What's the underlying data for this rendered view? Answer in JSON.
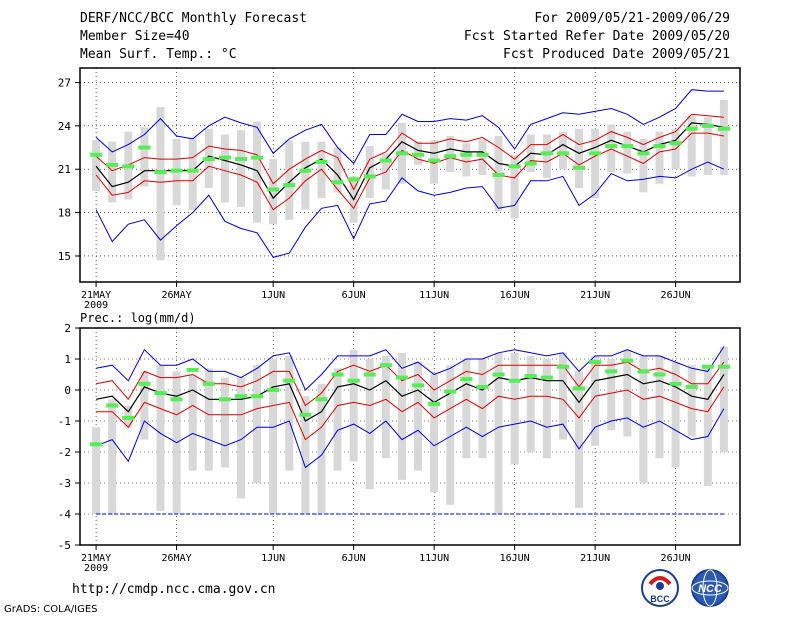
{
  "header": {
    "left_line1": "DERF/NCC/BCC Monthly Forecast",
    "left_line2": "Member Size=40",
    "left_line3": "Mean Surf. Temp.: °C",
    "right_line1": "For 2009/05/21-2009/06/29",
    "right_line2": "Fcst Started Refer Date 2009/05/20",
    "right_line3": "Fcst Produced Date 2009/05/21"
  },
  "footer": {
    "url": "http://cmdp.ncc.cma.gov.cn",
    "credit": "GrADS: COLA/IGES",
    "logo_left_text": "BCC",
    "logo_right_text": "NCC"
  },
  "colors": {
    "mean": "#000000",
    "spread_inner": "#dd0000",
    "spread_outer": "#0000dd",
    "box": "#d8d8d8",
    "observed": "#55ee55"
  },
  "chart_data": [
    {
      "type": "line",
      "title": "Mean Surf. Temp.: °C",
      "x_tick_labels": [
        "21MAY",
        "26MAY",
        "1JUN",
        "6JUN",
        "11JUN",
        "16JUN",
        "21JUN",
        "26JUN"
      ],
      "x_year_label": "2009",
      "x_tick_days": [
        1,
        6,
        12,
        17,
        22,
        27,
        32,
        37
      ],
      "xlim": [
        0,
        41
      ],
      "y_ticks": [
        15,
        18,
        21,
        24,
        27
      ],
      "ylim": [
        13.2,
        28
      ],
      "days": [
        1,
        2,
        3,
        4,
        5,
        6,
        7,
        8,
        9,
        10,
        11,
        12,
        13,
        14,
        15,
        16,
        17,
        18,
        19,
        20,
        21,
        22,
        23,
        24,
        25,
        26,
        27,
        28,
        29,
        30,
        31,
        32,
        33,
        34,
        35,
        36,
        37,
        38,
        39,
        40
      ],
      "series": [
        {
          "name": "mean",
          "values": [
            21.2,
            19.8,
            20.1,
            20.9,
            20.9,
            20.9,
            20.9,
            21.9,
            21.6,
            21.3,
            20.9,
            19.0,
            20.1,
            21.1,
            21.7,
            20.6,
            18.9,
            21.1,
            21.7,
            22.9,
            22.3,
            22.1,
            22.4,
            22.2,
            22.2,
            21.4,
            21.2,
            22.1,
            22.0,
            22.7,
            22.1,
            22.5,
            23.0,
            22.6,
            22.2,
            22.7,
            23.0,
            24.2,
            24.1,
            23.9
          ]
        },
        {
          "name": "upper_inner",
          "values": [
            21.9,
            20.9,
            21.3,
            21.8,
            21.7,
            21.7,
            21.8,
            22.6,
            22.4,
            22.3,
            22.0,
            20.0,
            21.0,
            21.7,
            22.3,
            21.8,
            19.6,
            21.7,
            22.2,
            23.5,
            22.8,
            22.8,
            23.1,
            22.9,
            23.2,
            22.5,
            21.7,
            22.7,
            22.7,
            23.4,
            22.7,
            23.0,
            23.6,
            23.2,
            22.7,
            23.2,
            23.6,
            24.8,
            24.7,
            24.6
          ]
        },
        {
          "name": "lower_inner",
          "values": [
            20.6,
            19.2,
            19.4,
            20.2,
            20.1,
            20.2,
            20.2,
            21.2,
            20.9,
            20.6,
            20.1,
            18.2,
            19.0,
            20.2,
            21.0,
            19.6,
            18.3,
            20.4,
            20.8,
            22.3,
            21.7,
            21.4,
            21.8,
            21.5,
            21.7,
            20.6,
            20.4,
            21.6,
            21.5,
            22.1,
            21.3,
            21.9,
            22.4,
            21.9,
            21.4,
            22.2,
            22.4,
            23.5,
            23.5,
            23.3
          ]
        },
        {
          "name": "upper_outer",
          "values": [
            23.2,
            22.2,
            22.7,
            23.4,
            24.5,
            23.3,
            23.1,
            24.0,
            24.6,
            24.2,
            23.9,
            22.1,
            23.1,
            23.7,
            24.1,
            22.5,
            21.4,
            23.4,
            23.4,
            24.8,
            24.3,
            24.3,
            24.5,
            24.4,
            24.7,
            23.9,
            22.4,
            24.1,
            24.5,
            24.9,
            24.8,
            25.0,
            25.2,
            24.8,
            24.1,
            24.6,
            25.2,
            26.5,
            26.4,
            26.4
          ]
        },
        {
          "name": "lower_outer",
          "values": [
            18.2,
            16.0,
            17.2,
            17.5,
            16.1,
            17.1,
            18.0,
            19.2,
            17.4,
            16.9,
            16.6,
            14.9,
            15.2,
            17.0,
            18.3,
            18.5,
            16.2,
            18.6,
            18.8,
            20.4,
            19.5,
            19.2,
            19.4,
            19.7,
            19.8,
            18.3,
            18.5,
            20.2,
            20.2,
            20.5,
            18.5,
            19.3,
            20.7,
            20.2,
            20.3,
            20.5,
            20.4,
            21.0,
            21.5,
            21.0
          ]
        },
        {
          "name": "box_top",
          "values": [
            23.0,
            22.9,
            23.6,
            23.9,
            25.3,
            23.1,
            23.2,
            23.8,
            23.4,
            23.7,
            24.3,
            21.7,
            23.0,
            22.9,
            22.9,
            22.5,
            20.5,
            22.6,
            22.1,
            24.2,
            22.9,
            23.0,
            23.3,
            22.8,
            23.1,
            23.3,
            22.0,
            23.4,
            23.4,
            23.6,
            23.8,
            23.8,
            24.1,
            23.6,
            23.1,
            23.6,
            23.8,
            24.7,
            24.6,
            25.8
          ]
        },
        {
          "name": "box_bottom",
          "values": [
            19.5,
            18.7,
            18.9,
            19.8,
            14.7,
            18.5,
            18.2,
            19.7,
            18.7,
            18.4,
            17.3,
            17.2,
            17.5,
            18.2,
            19.0,
            19.4,
            17.3,
            19.0,
            19.6,
            20.0,
            21.3,
            20.0,
            20.8,
            20.5,
            20.6,
            18.1,
            17.6,
            20.8,
            20.4,
            21.0,
            19.7,
            19.0,
            20.8,
            20.7,
            19.4,
            20.0,
            21.0,
            20.5,
            20.6,
            20.6
          ]
        },
        {
          "name": "observed",
          "values": [
            22.0,
            21.3,
            21.2,
            22.5,
            20.8,
            20.9,
            20.9,
            21.7,
            21.8,
            21.7,
            21.8,
            19.6,
            19.9,
            20.9,
            21.5,
            20.1,
            20.3,
            20.5,
            21.6,
            22.1,
            22.0,
            21.6,
            21.9,
            22.0,
            22.0,
            20.6,
            21.2,
            21.4,
            22.1,
            22.1,
            21.1,
            22.1,
            22.6,
            22.6,
            22.1,
            22.6,
            22.8,
            23.8,
            24.0,
            23.8
          ]
        }
      ]
    },
    {
      "type": "line",
      "title": "Prec.: log(mm/d)",
      "x_tick_labels": [
        "21MAY",
        "26MAY",
        "1JUN",
        "6JUN",
        "11JUN",
        "16JUN",
        "21JUN",
        "26JUN"
      ],
      "x_year_label": "2009",
      "x_tick_days": [
        1,
        6,
        12,
        17,
        22,
        27,
        32,
        37
      ],
      "xlim": [
        0,
        41
      ],
      "y_ticks": [
        -5,
        -4,
        -3,
        -2,
        -1,
        0,
        1,
        2
      ],
      "ylim": [
        -5,
        2
      ],
      "baseline": -4,
      "days": [
        1,
        2,
        3,
        4,
        5,
        6,
        7,
        8,
        9,
        10,
        11,
        12,
        13,
        14,
        15,
        16,
        17,
        18,
        19,
        20,
        21,
        22,
        23,
        24,
        25,
        26,
        27,
        28,
        29,
        30,
        31,
        32,
        33,
        34,
        35,
        36,
        37,
        38,
        39,
        40
      ],
      "series": [
        {
          "name": "mean",
          "values": [
            -0.3,
            -0.2,
            -0.7,
            0.1,
            -0.1,
            -0.2,
            0.0,
            -0.3,
            -0.3,
            -0.3,
            -0.2,
            0.1,
            0.2,
            -1.0,
            -0.7,
            0.1,
            0.2,
            0.0,
            0.3,
            -0.2,
            0.0,
            -0.4,
            -0.1,
            0.2,
            0.0,
            0.4,
            0.3,
            0.4,
            0.3,
            0.3,
            -0.4,
            0.3,
            0.4,
            0.5,
            0.2,
            0.3,
            0.1,
            -0.2,
            -0.3,
            0.5
          ]
        },
        {
          "name": "upper_inner",
          "values": [
            0.2,
            0.3,
            -0.3,
            0.6,
            0.4,
            0.4,
            0.5,
            0.2,
            0.2,
            0.1,
            0.3,
            0.6,
            0.6,
            -0.5,
            -0.1,
            0.6,
            0.8,
            0.6,
            0.8,
            0.3,
            0.5,
            0.0,
            0.3,
            0.6,
            0.5,
            0.8,
            0.8,
            0.8,
            0.8,
            0.8,
            0.1,
            0.8,
            0.8,
            0.9,
            0.6,
            0.7,
            0.5,
            0.2,
            0.2,
            0.9
          ]
        },
        {
          "name": "lower_inner",
          "values": [
            -0.7,
            -0.7,
            -1.2,
            -0.4,
            -0.6,
            -0.8,
            -0.5,
            -0.8,
            -0.8,
            -0.8,
            -0.6,
            -0.5,
            -0.4,
            -1.6,
            -1.2,
            -0.5,
            -0.4,
            -0.5,
            -0.3,
            -0.7,
            -0.4,
            -0.9,
            -0.6,
            -0.3,
            -0.6,
            -0.2,
            -0.3,
            -0.2,
            -0.2,
            -0.3,
            -0.9,
            -0.2,
            -0.1,
            0.0,
            -0.3,
            -0.2,
            -0.4,
            -0.6,
            -0.7,
            0.1
          ]
        },
        {
          "name": "upper_outer",
          "values": [
            0.7,
            0.8,
            0.3,
            1.3,
            0.8,
            0.8,
            1.0,
            0.6,
            0.6,
            0.4,
            0.7,
            1.1,
            1.2,
            0.0,
            0.5,
            1.1,
            1.1,
            1.1,
            1.3,
            0.7,
            0.9,
            0.5,
            0.7,
            1.0,
            1.0,
            1.2,
            1.3,
            1.2,
            1.1,
            1.2,
            0.6,
            1.1,
            1.1,
            1.3,
            1.1,
            1.1,
            0.9,
            0.7,
            0.6,
            1.4
          ]
        },
        {
          "name": "lower_outer",
          "values": [
            -1.8,
            -1.6,
            -2.3,
            -1.0,
            -1.4,
            -1.7,
            -1.4,
            -1.6,
            -1.8,
            -1.6,
            -1.2,
            -1.2,
            -1.0,
            -2.5,
            -2.1,
            -1.3,
            -1.1,
            -1.4,
            -1.0,
            -1.6,
            -1.3,
            -1.8,
            -1.5,
            -1.2,
            -1.5,
            -1.2,
            -1.1,
            -1.0,
            -1.2,
            -1.1,
            -1.9,
            -1.2,
            -1.0,
            -0.9,
            -1.2,
            -1.0,
            -1.3,
            -1.6,
            -1.5,
            -0.6
          ]
        },
        {
          "name": "box_top",
          "values": [
            -1.2,
            -0.3,
            -0.5,
            0.6,
            0.8,
            0.6,
            0.5,
            0.7,
            0.4,
            0.4,
            0.8,
            1.0,
            1.1,
            -0.2,
            0.2,
            0.7,
            1.3,
            1.0,
            1.1,
            1.2,
            0.9,
            0.5,
            0.8,
            1.0,
            1.0,
            1.2,
            1.2,
            1.1,
            1.0,
            1.2,
            0.6,
            1.1,
            1.0,
            1.3,
            1.1,
            1.1,
            0.9,
            0.8,
            0.7,
            1.4
          ]
        },
        {
          "name": "box_bottom",
          "values": [
            -4,
            -4,
            -1.2,
            -1.6,
            -3.9,
            -4,
            -2.6,
            -2.6,
            -2.5,
            -3.5,
            -3.0,
            -4,
            -2.6,
            -4,
            -4,
            -2.6,
            -2.3,
            -3.2,
            -2.2,
            -2.9,
            -2.6,
            -3.3,
            -3.7,
            -2.2,
            -2.2,
            -4,
            -2.4,
            -2.0,
            -2.2,
            -1.6,
            -3.8,
            -1.8,
            -1.3,
            -1.5,
            -3.0,
            -2.2,
            -2.5,
            -1.5,
            -3.1,
            -2.0
          ]
        },
        {
          "name": "observed",
          "values": [
            -1.75,
            -0.5,
            -0.9,
            0.2,
            -0.1,
            -0.3,
            0.65,
            0.2,
            -0.3,
            -0.2,
            -0.2,
            0.0,
            0.3,
            -0.8,
            -0.3,
            0.5,
            0.3,
            0.5,
            0.8,
            0.4,
            0.15,
            -0.45,
            -0.05,
            0.35,
            0.1,
            0.5,
            0.3,
            0.45,
            0.4,
            0.75,
            0.05,
            0.9,
            0.6,
            0.95,
            0.6,
            0.5,
            0.2,
            0.1,
            0.75,
            0.75
          ]
        }
      ]
    }
  ]
}
